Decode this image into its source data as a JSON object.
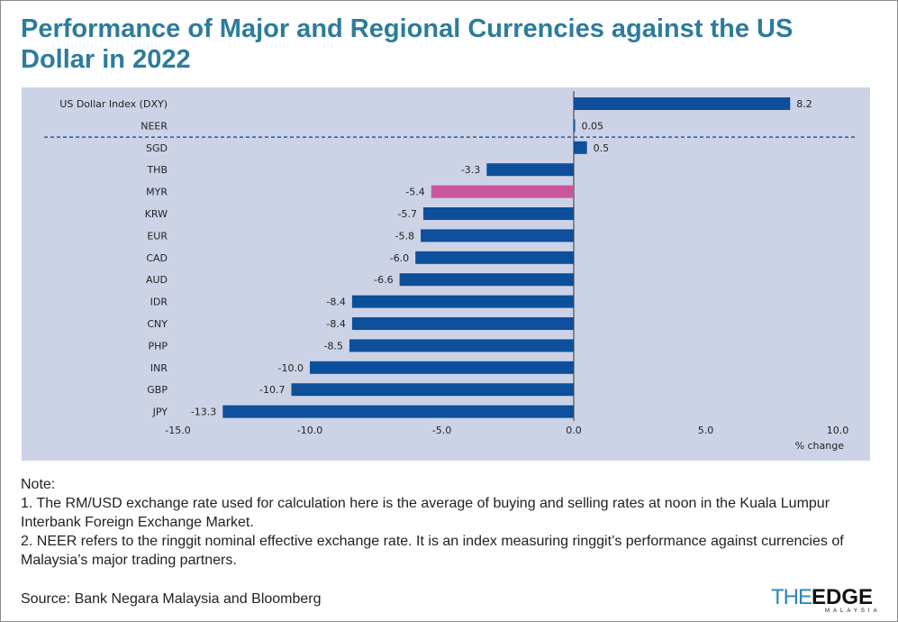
{
  "title": "Performance of Major and Regional Currencies against the US Dollar in 2022",
  "chart_data": {
    "type": "bar",
    "orientation": "horizontal",
    "categories": [
      "US Dollar Index (DXY)",
      "NEER",
      "SGD",
      "THB",
      "MYR",
      "KRW",
      "EUR",
      "CAD",
      "AUD",
      "IDR",
      "CNY",
      "PHP",
      "INR",
      "GBP",
      "JPY"
    ],
    "values": [
      8.2,
      0.05,
      0.5,
      -3.3,
      -5.4,
      -5.7,
      -5.8,
      -6.0,
      -6.6,
      -8.4,
      -8.4,
      -8.5,
      -10.0,
      -10.7,
      -13.3
    ],
    "value_labels": [
      "8.2",
      "0.05",
      "0.5",
      "-3.3",
      "-5.4",
      "-5.7",
      "-5.8",
      "-6.0",
      "-6.6",
      "-8.4",
      "-8.4",
      "-8.5",
      "-10.0",
      "-10.7",
      "-13.3"
    ],
    "highlight": "MYR",
    "xlabel": "% change",
    "xlim": [
      -15,
      10
    ],
    "xticks": [
      "-15.0",
      "-10.0",
      "-5.0",
      "0.0",
      "5.0",
      "10.0"
    ],
    "grid": false,
    "colors": {
      "bar": "#0d4f9a",
      "highlight": "#c8579c",
      "background": "#cdd3e7",
      "divider": "#1a5ea8"
    }
  },
  "notes": {
    "heading": "Note:",
    "items": [
      "1. The RM/USD exchange rate used for calculation here is the average of buying and selling rates at noon in the Kuala Lumpur Interbank Foreign Exchange Market.",
      "2. NEER refers to the ringgit nominal effective exchange rate. It is an index measuring ringgit’s performance against currencies of Malaysia’s major trading partners."
    ]
  },
  "source": "Source: Bank Negara Malaysia and Bloomberg",
  "logo": {
    "the": "THE",
    "edge": "EDGE",
    "sub": "MALAYSIA"
  }
}
